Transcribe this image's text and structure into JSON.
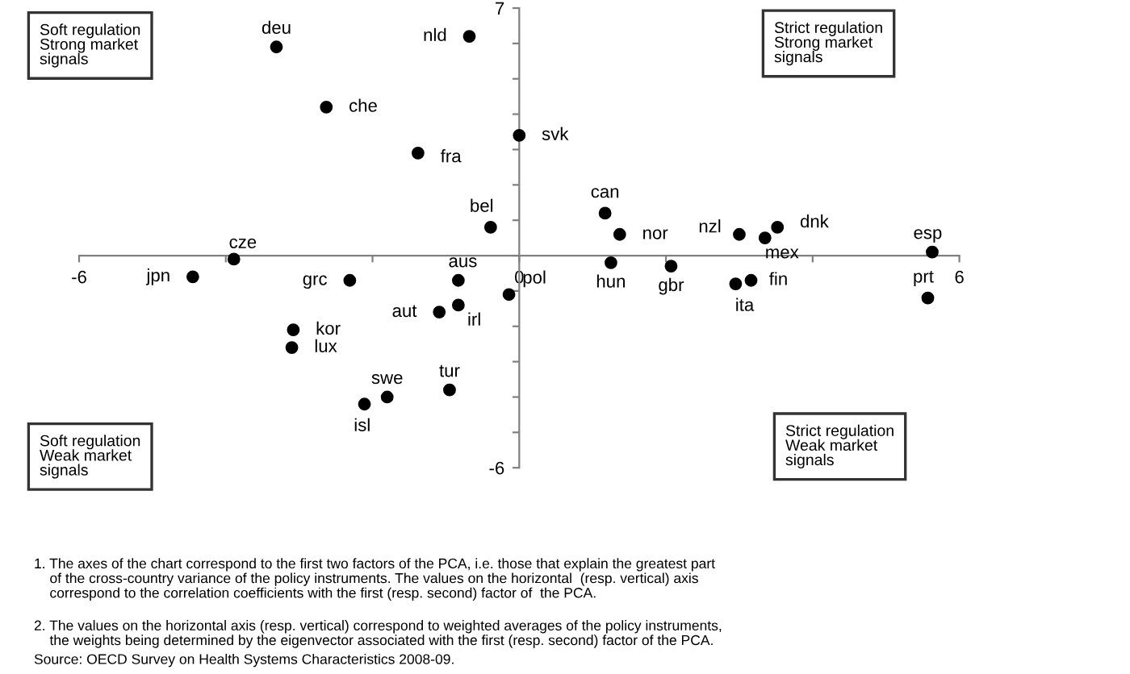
{
  "chart_data": {
    "type": "scatter",
    "marker": "circle",
    "grid": false,
    "x": [
      -3.31,
      -0.68,
      -2.63,
      0.0,
      -1.38,
      -0.39,
      -3.89,
      -4.45,
      -2.31,
      -0.83,
      -0.14,
      -0.83,
      -1.09,
      -3.08,
      -3.1,
      -0.95,
      -1.8,
      -2.11,
      1.17,
      1.37,
      1.25,
      2.07,
      3.0,
      3.35,
      3.52,
      2.95,
      3.16,
      5.63,
      5.57
    ],
    "series": [
      {
        "color": "#000000",
        "values": [
          5.9,
          6.2,
          4.2,
          3.4,
          2.9,
          0.8,
          -0.1,
          -0.6,
          -0.7,
          -0.7,
          -1.1,
          -1.4,
          -1.6,
          -2.1,
          -2.6,
          -3.8,
          -4.0,
          -4.2,
          1.2,
          0.6,
          -0.2,
          -0.3,
          0.6,
          0.5,
          0.8,
          -0.8,
          -0.7,
          0.1,
          -1.2
        ]
      }
    ],
    "xlim": [
      -6,
      6
    ],
    "ylim": [
      -6,
      7
    ],
    "xticks": [
      {
        "value": -6,
        "label": "-6"
      },
      {
        "value": -4,
        "label": null
      },
      {
        "value": -2,
        "label": null
      },
      {
        "value": 0,
        "label": "0"
      },
      {
        "value": 2,
        "label": null
      },
      {
        "value": 4,
        "label": null
      },
      {
        "value": 6,
        "label": "6"
      }
    ],
    "yticks": [
      {
        "value": -6,
        "label": "-6"
      },
      {
        "value": -5,
        "label": null
      },
      {
        "value": -4,
        "label": null
      },
      {
        "value": -3,
        "label": null
      },
      {
        "value": -2,
        "label": null
      },
      {
        "value": -1,
        "label": null
      },
      {
        "value": 0,
        "label": null
      },
      {
        "value": 1,
        "label": null
      },
      {
        "value": 2,
        "label": null
      },
      {
        "value": 3,
        "label": null
      },
      {
        "value": 4,
        "label": null
      },
      {
        "value": 5,
        "label": null
      },
      {
        "value": 6,
        "label": null
      },
      {
        "value": 7,
        "label": "7"
      }
    ],
    "annotations": [
      "Soft regulation\nStrong market\nsignals",
      "Strict regulation\nStrong market\nsignals",
      "Soft regulation\nWeak market\nsignals",
      "Strict regulation\nWeak market\nsignals",
      "1. The axes of the chart correspond to the first two factors of the PCA, i.e. those that explain the greatest part\n    of the cross-country variance of the policy instruments. The values on the horizontal  (resp. vertical) axis\n    correspond to the correlation coefficients with the first (resp. second) factor of  the PCA.",
      "2. The values on the horizontal axis (resp. vertical) correspond to weighted averages of the policy instruments,\n    the weights being determined by the eigenvector associated with the first (resp. second) factor of the PCA.",
      "Source: OECD Survey on Health Systems Characteristics 2008-09.",
      {
        "text": "deu",
        "x": -3.31,
        "y": 5.9
      },
      {
        "text": "nld",
        "x": -0.68,
        "y": 6.2
      },
      {
        "text": "che",
        "x": -2.63,
        "y": 4.2
      },
      {
        "text": "svk",
        "x": 0.0,
        "y": 3.4
      },
      {
        "text": "fra",
        "x": -1.38,
        "y": 2.9
      },
      {
        "text": "bel",
        "x": -0.39,
        "y": 0.8
      },
      {
        "text": "cze",
        "x": -3.89,
        "y": -0.1
      },
      {
        "text": "jpn",
        "x": -4.45,
        "y": -0.6
      },
      {
        "text": "grc",
        "x": -2.31,
        "y": -0.7
      },
      {
        "text": "aus",
        "x": -0.83,
        "y": -0.7
      },
      {
        "text": "pol",
        "x": -0.14,
        "y": -1.1
      },
      {
        "text": "irl",
        "x": -0.83,
        "y": -1.4
      },
      {
        "text": "aut",
        "x": -1.09,
        "y": -1.6
      },
      {
        "text": "kor",
        "x": -3.08,
        "y": -2.1
      },
      {
        "text": "lux",
        "x": -3.1,
        "y": -2.6
      },
      {
        "text": "tur",
        "x": -0.95,
        "y": -3.8
      },
      {
        "text": "swe",
        "x": -1.8,
        "y": -4.0
      },
      {
        "text": "isl",
        "x": -2.11,
        "y": -4.2
      },
      {
        "text": "can",
        "x": 1.17,
        "y": 1.2
      },
      {
        "text": "nor",
        "x": 1.37,
        "y": 0.6
      },
      {
        "text": "hun",
        "x": 1.25,
        "y": -0.2
      },
      {
        "text": "gbr",
        "x": 2.07,
        "y": -0.3
      },
      {
        "text": "nzl",
        "x": 3.0,
        "y": 0.6
      },
      {
        "text": "mex",
        "x": 3.35,
        "y": 0.5
      },
      {
        "text": "dnk",
        "x": 3.52,
        "y": 0.8
      },
      {
        "text": "ita",
        "x": 2.95,
        "y": -0.8
      },
      {
        "text": "fin",
        "x": 3.16,
        "y": -0.7
      },
      {
        "text": "esp",
        "x": 5.63,
        "y": 0.1
      },
      {
        "text": "prt",
        "x": 5.57,
        "y": -1.2
      }
    ]
  }
}
